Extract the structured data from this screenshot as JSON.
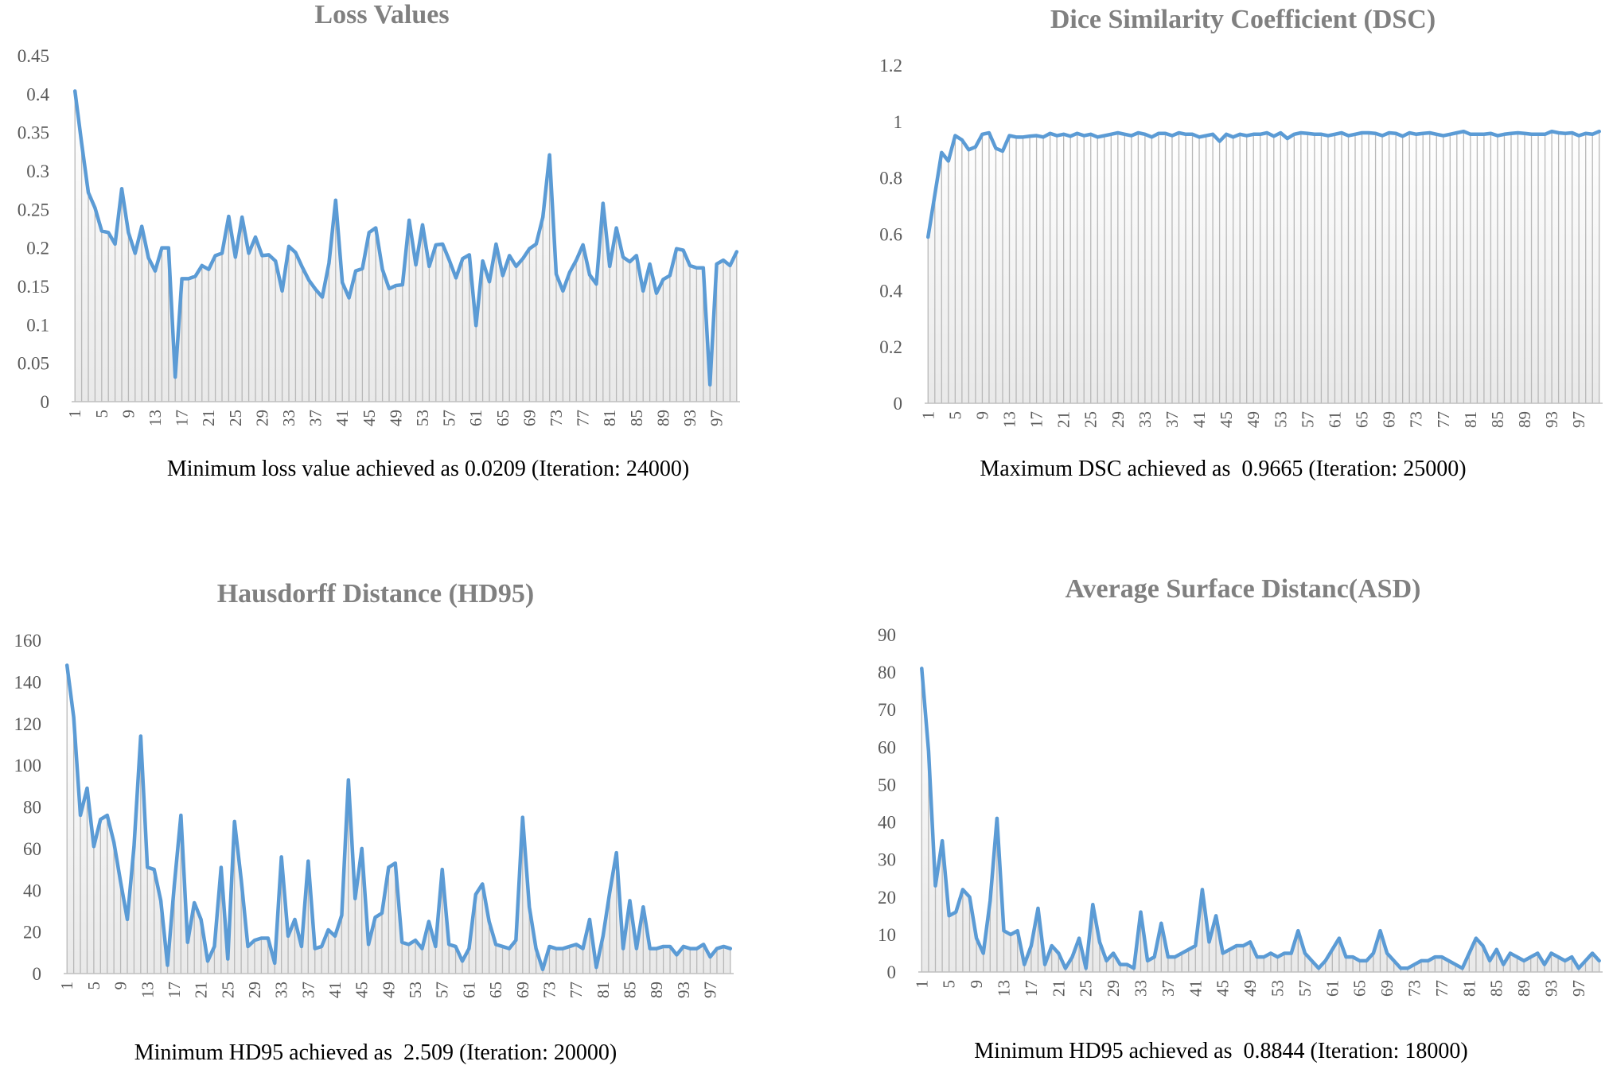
{
  "colors": {
    "series": "#5B9BD5",
    "drop": "#B8B8B8",
    "title": "#808080",
    "tick": "#595959"
  },
  "chart_data": [
    {
      "type": "line",
      "title": "Loss Values",
      "caption": "Minimum loss value achieved as 0.0209 (Iteration: 24000)",
      "ylim": [
        0,
        0.45
      ],
      "yticks": [
        "0",
        "0.05",
        "0.1",
        "0.15",
        "0.2",
        "0.25",
        "0.3",
        "0.35",
        "0.4",
        "0.45"
      ],
      "x": {
        "start": 1,
        "end": 100,
        "tick_step": 4
      },
      "xtick_labels": [
        "1",
        "5",
        "9",
        "13",
        "17",
        "21",
        "25",
        "29",
        "33",
        "37",
        "41",
        "45",
        "49",
        "53",
        "57",
        "61",
        "65",
        "69",
        "73",
        "77",
        "81",
        "85",
        "89",
        "93",
        "97"
      ],
      "series": [
        {
          "values": [
            0.404,
            0.336,
            0.272,
            0.252,
            0.222,
            0.22,
            0.205,
            0.277,
            0.22,
            0.193,
            0.228,
            0.187,
            0.17,
            0.2,
            0.2,
            0.032,
            0.16,
            0.16,
            0.163,
            0.177,
            0.172,
            0.19,
            0.193,
            0.241,
            0.188,
            0.24,
            0.193,
            0.214,
            0.19,
            0.191,
            0.183,
            0.144,
            0.202,
            0.194,
            0.175,
            0.158,
            0.146,
            0.136,
            0.18,
            0.262,
            0.155,
            0.135,
            0.17,
            0.173,
            0.22,
            0.226,
            0.172,
            0.147,
            0.151,
            0.152,
            0.236,
            0.178,
            0.23,
            0.176,
            0.204,
            0.205,
            0.184,
            0.161,
            0.186,
            0.191,
            0.099,
            0.183,
            0.156,
            0.205,
            0.164,
            0.19,
            0.176,
            0.186,
            0.199,
            0.205,
            0.24,
            0.321,
            0.166,
            0.144,
            0.168,
            0.184,
            0.204,
            0.165,
            0.153,
            0.258,
            0.176,
            0.226,
            0.188,
            0.182,
            0.19,
            0.144,
            0.179,
            0.141,
            0.159,
            0.164,
            0.199,
            0.197,
            0.177,
            0.174,
            0.174,
            0.022,
            0.179,
            0.184,
            0.177,
            0.195
          ]
        }
      ]
    },
    {
      "type": "line",
      "title": "Dice Similarity Coefficient (DSC)",
      "caption": "Maximum DSC achieved as  0.9665 (Iteration: 25000)",
      "ylim": [
        0,
        1.2
      ],
      "yticks": [
        "0",
        "0.2",
        "0.4",
        "0.6",
        "0.8",
        "1",
        "1.2"
      ],
      "x": {
        "start": 1,
        "end": 100,
        "tick_step": 4
      },
      "xtick_labels": [
        "1",
        "5",
        "9",
        "13",
        "17",
        "21",
        "25",
        "29",
        "33",
        "37",
        "41",
        "45",
        "49",
        "53",
        "57",
        "61",
        "65",
        "69",
        "73",
        "77",
        "81",
        "85",
        "89",
        "93",
        "97"
      ],
      "series": [
        {
          "values": [
            0.59,
            0.74,
            0.89,
            0.86,
            0.95,
            0.935,
            0.9,
            0.91,
            0.955,
            0.96,
            0.905,
            0.895,
            0.95,
            0.945,
            0.945,
            0.948,
            0.95,
            0.945,
            0.958,
            0.95,
            0.955,
            0.948,
            0.958,
            0.95,
            0.955,
            0.945,
            0.95,
            0.955,
            0.96,
            0.955,
            0.95,
            0.96,
            0.955,
            0.945,
            0.958,
            0.958,
            0.95,
            0.96,
            0.955,
            0.955,
            0.945,
            0.95,
            0.955,
            0.93,
            0.955,
            0.945,
            0.955,
            0.95,
            0.955,
            0.955,
            0.96,
            0.948,
            0.96,
            0.94,
            0.955,
            0.96,
            0.958,
            0.955,
            0.955,
            0.95,
            0.955,
            0.96,
            0.95,
            0.955,
            0.96,
            0.96,
            0.958,
            0.95,
            0.96,
            0.958,
            0.948,
            0.96,
            0.955,
            0.958,
            0.96,
            0.955,
            0.95,
            0.955,
            0.96,
            0.965,
            0.955,
            0.955,
            0.955,
            0.958,
            0.95,
            0.955,
            0.958,
            0.96,
            0.958,
            0.955,
            0.955,
            0.955,
            0.965,
            0.96,
            0.958,
            0.96,
            0.95,
            0.958,
            0.955,
            0.965
          ]
        }
      ]
    },
    {
      "type": "line",
      "title": "Hausdorff Distance (HD95)",
      "caption": "Minimum HD95 achieved as  2.509 (Iteration: 20000)",
      "ylim": [
        0,
        160
      ],
      "yticks": [
        "0",
        "20",
        "40",
        "60",
        "80",
        "100",
        "120",
        "140",
        "160"
      ],
      "x": {
        "start": 1,
        "end": 100,
        "tick_step": 4
      },
      "xtick_labels": [
        "1",
        "5",
        "9",
        "13",
        "17",
        "21",
        "25",
        "29",
        "33",
        "37",
        "41",
        "45",
        "49",
        "53",
        "57",
        "61",
        "65",
        "69",
        "73",
        "77",
        "81",
        "85",
        "89",
        "93",
        "97"
      ],
      "series": [
        {
          "values": [
            148,
            123,
            76,
            89,
            61,
            74,
            76,
            63,
            44,
            26,
            61,
            114,
            51,
            50,
            35,
            4,
            42,
            76,
            15,
            34,
            26,
            6,
            13,
            51,
            7,
            73,
            45,
            13,
            16,
            17,
            17,
            5,
            56,
            18,
            26,
            13,
            54,
            12,
            13,
            21,
            18,
            28,
            93,
            36,
            60,
            14,
            27,
            29,
            51,
            53,
            15,
            14,
            16,
            12,
            25,
            13,
            50,
            14,
            13,
            6,
            12,
            38,
            43,
            25,
            14,
            13,
            12,
            16,
            75,
            32,
            12,
            2,
            13,
            12,
            12,
            13,
            14,
            12,
            26,
            3,
            18,
            39,
            58,
            12,
            35,
            12,
            32,
            12,
            12,
            13,
            13,
            9,
            13,
            12,
            12,
            14,
            8,
            12,
            13,
            12
          ]
        }
      ]
    },
    {
      "type": "line",
      "title": "Average Surface Distanc(ASD)",
      "caption": "Minimum HD95 achieved as  0.8844 (Iteration: 18000)",
      "ylim": [
        0,
        90
      ],
      "yticks": [
        "0",
        "10",
        "20",
        "30",
        "40",
        "50",
        "60",
        "70",
        "80",
        "90"
      ],
      "x": {
        "start": 1,
        "end": 100,
        "tick_step": 4
      },
      "xtick_labels": [
        "1",
        "5",
        "9",
        "13",
        "17",
        "21",
        "25",
        "29",
        "33",
        "37",
        "41",
        "45",
        "49",
        "53",
        "57",
        "61",
        "65",
        "69",
        "73",
        "77",
        "81",
        "85",
        "89",
        "93",
        "97"
      ],
      "series": [
        {
          "values": [
            81,
            59,
            23,
            35,
            15,
            16,
            22,
            20,
            9,
            5,
            19,
            41,
            11,
            10,
            11,
            2,
            7,
            17,
            2,
            7,
            5,
            1,
            4,
            9,
            1,
            18,
            8,
            3,
            5,
            2,
            2,
            1,
            16,
            3,
            4,
            13,
            4,
            4,
            5,
            6,
            7,
            22,
            8,
            15,
            5,
            6,
            7,
            7,
            8,
            4,
            4,
            5,
            4,
            5,
            5,
            11,
            5,
            3,
            1,
            3,
            6,
            9,
            4,
            4,
            3,
            3,
            5,
            11,
            5,
            3,
            1,
            1,
            2,
            3,
            3,
            4,
            4,
            3,
            2,
            1,
            5,
            9,
            7,
            3,
            6,
            2,
            5,
            4,
            3,
            4,
            5,
            2,
            5,
            4,
            3,
            4,
            1,
            3,
            5,
            3
          ]
        }
      ]
    }
  ]
}
